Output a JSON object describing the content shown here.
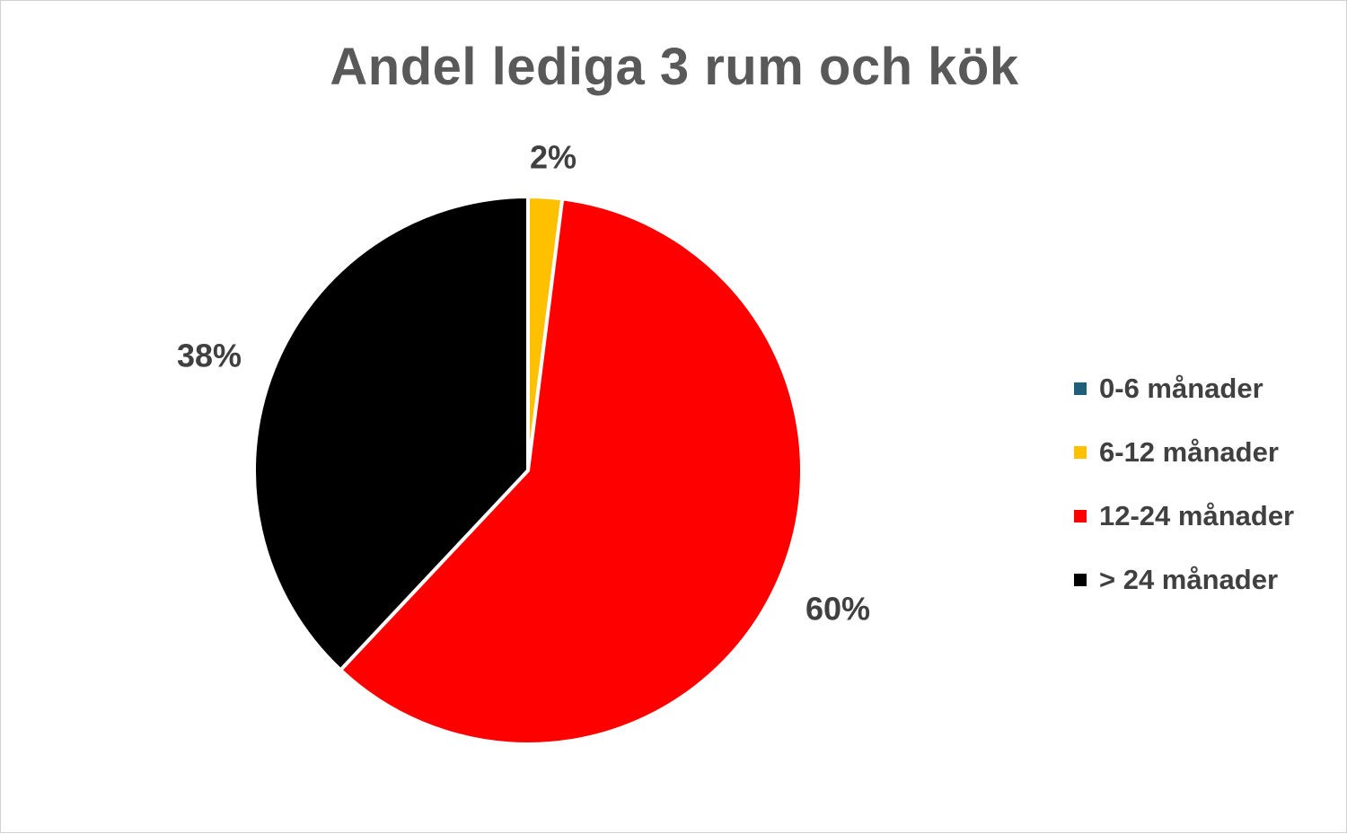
{
  "chart_data": {
    "type": "pie",
    "title": "Andel lediga 3 rum och kök",
    "categories": [
      "0-6 månader",
      "6-12 månader",
      "12-24 månader",
      "> 24 månader"
    ],
    "values": [
      0,
      2,
      60,
      38
    ],
    "labels": [
      "",
      "2%",
      "60%",
      "38%"
    ],
    "colors": [
      "#1f5f7a",
      "#ffc000",
      "#ff0000",
      "#000000"
    ],
    "legend_position": "right"
  }
}
